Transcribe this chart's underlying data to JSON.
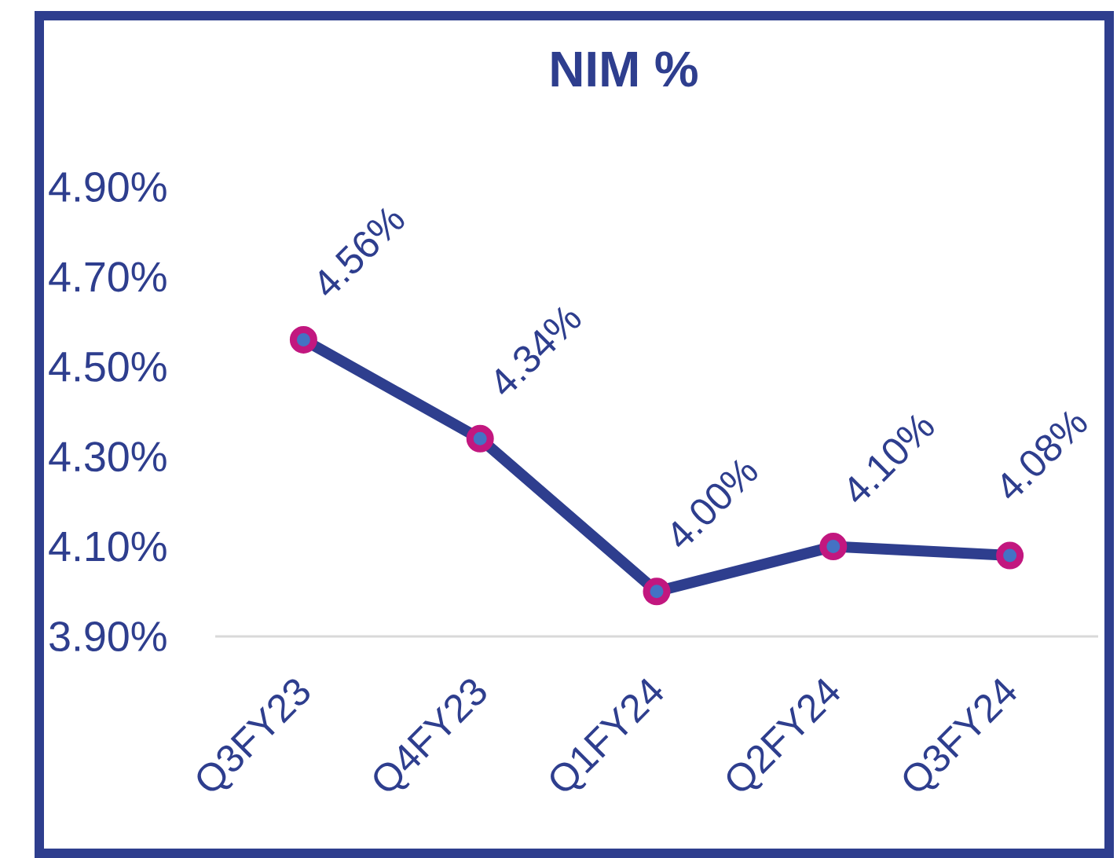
{
  "chart_data": {
    "type": "line",
    "title": "NIM %",
    "categories": [
      "Q3FY23",
      "Q4FY23",
      "Q1FY24",
      "Q2FY24",
      "Q3FY24"
    ],
    "series": [
      {
        "color": "#2e3e8e",
        "values": [
          4.56,
          4.34,
          4.0,
          4.1,
          4.08
        ],
        "value_labels": [
          "4.56%",
          "4.34%",
          "4.00%",
          "4.10%",
          "4.08%"
        ]
      }
    ],
    "ylim": [
      3.9,
      4.9
    ],
    "yticks": [
      {
        "value": 3.9,
        "label": "3.90%"
      },
      {
        "value": 4.1,
        "label": "4.10%"
      },
      {
        "value": 4.3,
        "label": "4.30%"
      },
      {
        "value": 4.5,
        "label": "4.50%"
      },
      {
        "value": 4.7,
        "label": "4.70%"
      },
      {
        "value": 4.9,
        "label": "4.90%"
      }
    ],
    "marker": "circle",
    "line_style": "solid",
    "grid": false,
    "legend": false
  }
}
